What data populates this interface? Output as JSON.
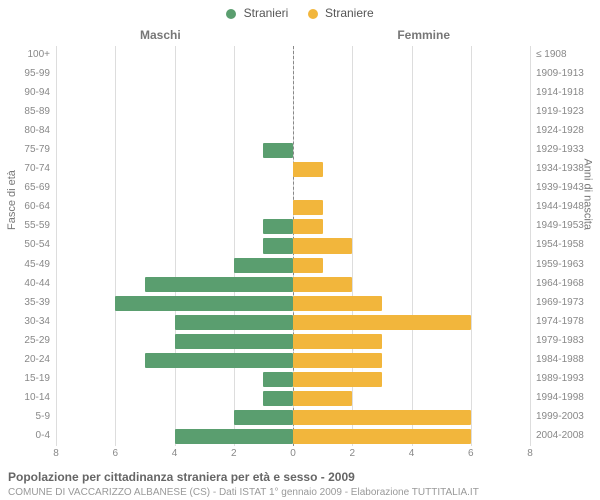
{
  "chart": {
    "type": "population-pyramid",
    "legend": [
      {
        "label": "Stranieri",
        "color": "#5a9e6f"
      },
      {
        "label": "Straniere",
        "color": "#f2b63c"
      }
    ],
    "side_headers": {
      "left": "Maschi",
      "right": "Femmine"
    },
    "y_axis_left_title": "Fasce di età",
    "y_axis_right_title": "Anni di nascita",
    "x_max": 8,
    "x_ticks": [
      8,
      6,
      4,
      2,
      0,
      2,
      4,
      6,
      8
    ],
    "grid_color": "#dddddd",
    "center_line_color": "#888888",
    "background_color": "#ffffff",
    "bar_colors": {
      "male": "#5a9e6f",
      "female": "#f2b63c"
    },
    "label_fontsize": 10,
    "header_fontsize": 12,
    "rows": [
      {
        "age": "100+",
        "birth": "≤ 1908",
        "male": 0,
        "female": 0
      },
      {
        "age": "95-99",
        "birth": "1909-1913",
        "male": 0,
        "female": 0
      },
      {
        "age": "90-94",
        "birth": "1914-1918",
        "male": 0,
        "female": 0
      },
      {
        "age": "85-89",
        "birth": "1919-1923",
        "male": 0,
        "female": 0
      },
      {
        "age": "80-84",
        "birth": "1924-1928",
        "male": 0,
        "female": 0
      },
      {
        "age": "75-79",
        "birth": "1929-1933",
        "male": 1,
        "female": 0
      },
      {
        "age": "70-74",
        "birth": "1934-1938",
        "male": 0,
        "female": 1
      },
      {
        "age": "65-69",
        "birth": "1939-1943",
        "male": 0,
        "female": 0
      },
      {
        "age": "60-64",
        "birth": "1944-1948",
        "male": 0,
        "female": 1
      },
      {
        "age": "55-59",
        "birth": "1949-1953",
        "male": 1,
        "female": 1
      },
      {
        "age": "50-54",
        "birth": "1954-1958",
        "male": 1,
        "female": 2
      },
      {
        "age": "45-49",
        "birth": "1959-1963",
        "male": 2,
        "female": 1
      },
      {
        "age": "40-44",
        "birth": "1964-1968",
        "male": 5,
        "female": 2
      },
      {
        "age": "35-39",
        "birth": "1969-1973",
        "male": 6,
        "female": 3
      },
      {
        "age": "30-34",
        "birth": "1974-1978",
        "male": 4,
        "female": 6
      },
      {
        "age": "25-29",
        "birth": "1979-1983",
        "male": 4,
        "female": 3
      },
      {
        "age": "20-24",
        "birth": "1984-1988",
        "male": 5,
        "female": 3
      },
      {
        "age": "15-19",
        "birth": "1989-1993",
        "male": 1,
        "female": 3
      },
      {
        "age": "10-14",
        "birth": "1994-1998",
        "male": 1,
        "female": 2
      },
      {
        "age": "5-9",
        "birth": "1999-2003",
        "male": 2,
        "female": 6
      },
      {
        "age": "0-4",
        "birth": "2004-2008",
        "male": 4,
        "female": 6
      }
    ],
    "caption_title": "Popolazione per cittadinanza straniera per età e sesso - 2009",
    "caption_sub": "COMUNE DI VACCARIZZO ALBANESE (CS) - Dati ISTAT 1° gennaio 2009 - Elaborazione TUTTITALIA.IT"
  }
}
